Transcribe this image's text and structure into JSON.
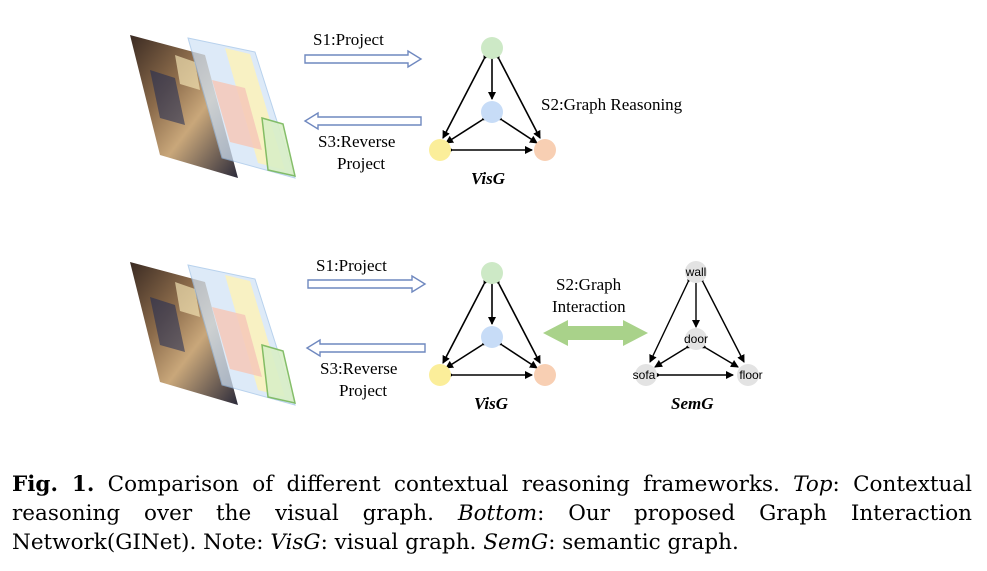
{
  "top": {
    "s1": "S1:Project",
    "s2": "S2:Graph Reasoning",
    "s3_line1": "S3:Reverse",
    "s3_line2": "Project",
    "graph_label": "VisG"
  },
  "bottom": {
    "s1": "S1:Project",
    "s2_line1": "S2:Graph",
    "s2_line2": "Interaction",
    "s3_line1": "S3:Reverse",
    "s3_line2": "Project",
    "visg_label": "VisG",
    "semg_label": "SemG",
    "semantic_nodes": {
      "wall": "wall",
      "door": "door",
      "sofa": "sofa",
      "floor": "floor"
    }
  },
  "colors": {
    "node_top": "#cde9c6",
    "node_center": "#c7dcf7",
    "node_left": "#fbee9a",
    "node_right": "#f8cfb3",
    "semantic_node": "#e3e3e3",
    "interaction_arrow": "#a9d28a",
    "project_arrow": "#6f88bf"
  },
  "caption": {
    "fig": "Fig. 1.",
    "text1": " Comparison of different contextual reasoning frameworks. ",
    "top": "Top",
    "text2": ": Contextual reasoning over the visual graph. ",
    "bottom": "Bottom",
    "text3": ": Our proposed Graph Interaction Network(GINet). Note: ",
    "visg": "VisG",
    "text4": ": visual graph. ",
    "semg": "SemG",
    "text5": ": semantic graph."
  }
}
